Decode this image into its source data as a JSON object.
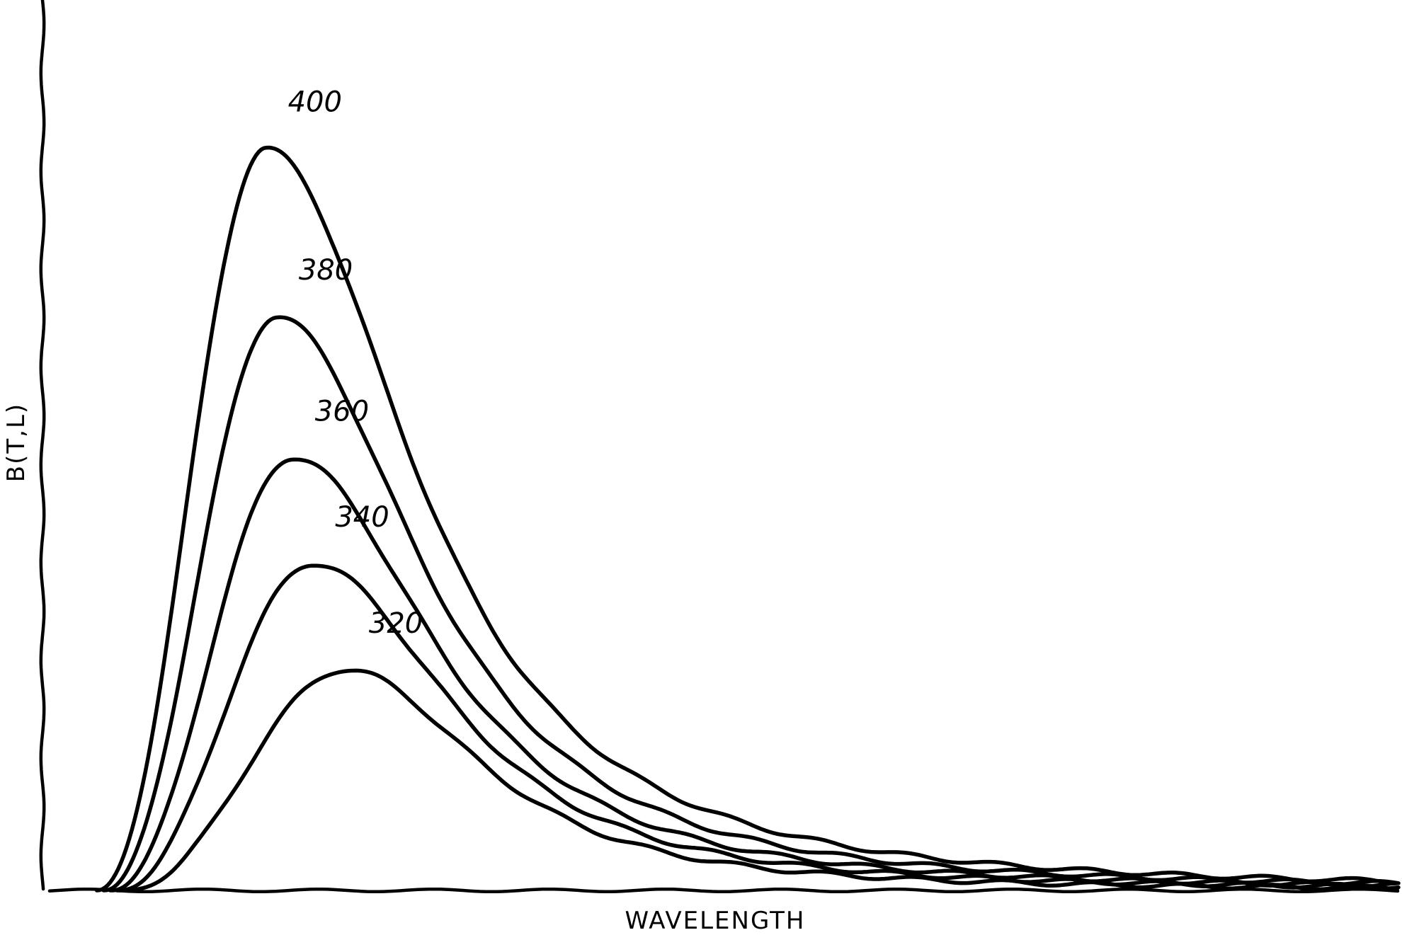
{
  "chart_data": {
    "type": "line",
    "title": "",
    "xlabel": "WAVELENGTH",
    "ylabel": "B(T,L)",
    "xlim": [
      0,
      10
    ],
    "ylim": [
      0,
      1
    ],
    "grid": false,
    "legend": "inline labels above each curve peak",
    "ticks": false,
    "series": [
      {
        "name": "320",
        "peak_x": 2.2,
        "peak_y": 0.25,
        "start_x": 0.55,
        "tail_k": 0.55
      },
      {
        "name": "340",
        "peak_x": 1.95,
        "peak_y": 0.37,
        "start_x": 0.5,
        "tail_k": 0.52
      },
      {
        "name": "360",
        "peak_x": 1.8,
        "peak_y": 0.49,
        "start_x": 0.45,
        "tail_k": 0.5
      },
      {
        "name": "380",
        "peak_x": 1.68,
        "peak_y": 0.65,
        "start_x": 0.4,
        "tail_k": 0.48
      },
      {
        "name": "400",
        "peak_x": 1.6,
        "peak_y": 0.84,
        "start_x": 0.35,
        "tail_k": 0.46
      }
    ]
  }
}
